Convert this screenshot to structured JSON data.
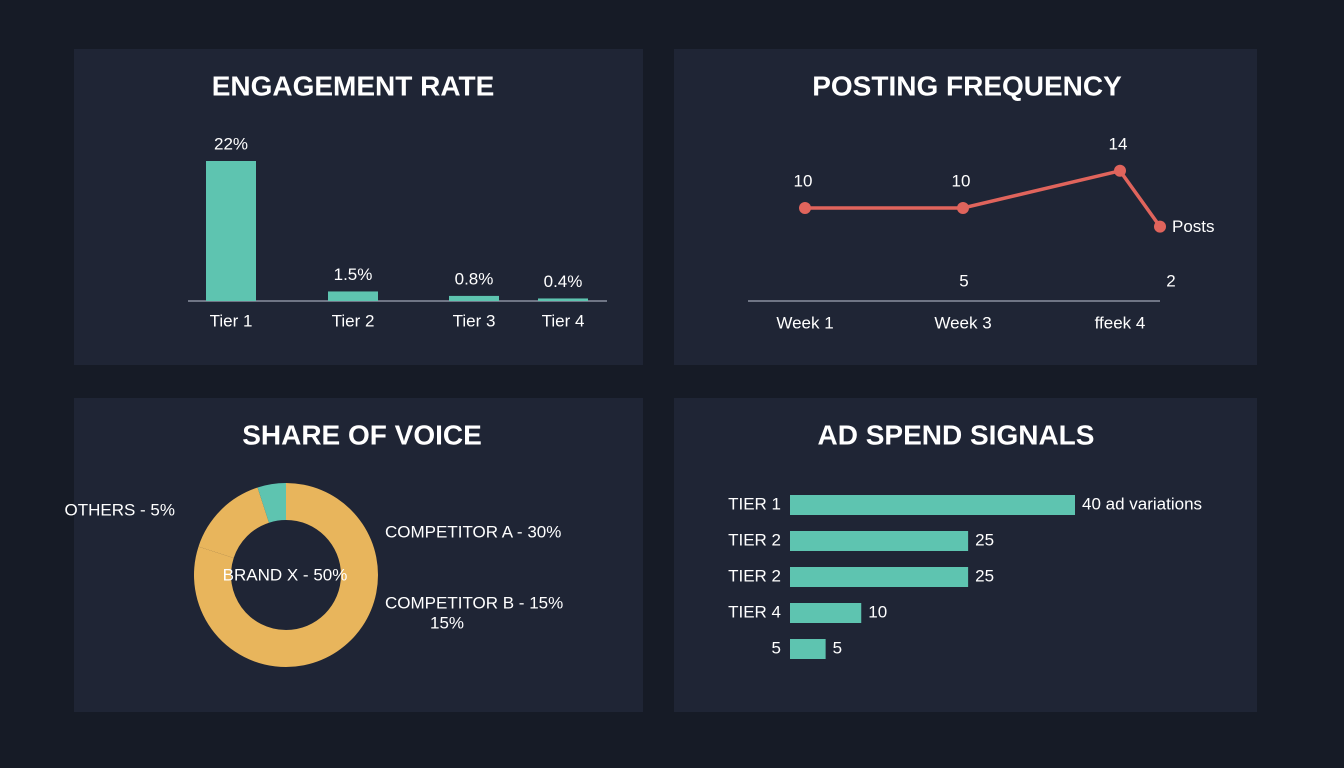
{
  "chart_data": [
    {
      "type": "bar",
      "title": "ENGAGEMENT RATE",
      "categories": [
        "Tier 1",
        "Tier 2",
        "Tier 3",
        "Tier 4"
      ],
      "values": [
        22,
        1.5,
        0.8,
        0.4
      ],
      "value_labels": [
        "22%",
        "1.5%",
        "0.8%",
        "0.4%"
      ],
      "color": "#5ec4b0"
    },
    {
      "type": "line",
      "title": "POSTING FREQUENCY",
      "categories": [
        "Week 1",
        "Week 3",
        "ffeek 4",
        null
      ],
      "series": [
        {
          "name": "Posts",
          "color": "#e0645c",
          "values": [
            10,
            10,
            14,
            8
          ]
        }
      ],
      "annotations": [
        "5",
        "2"
      ]
    },
    {
      "type": "pie",
      "title": "SHARE OF VOICE",
      "labels": [
        "BRAND X - 50%",
        "COMPETITOR A - 30%",
        "COMPETITOR B - 15%",
        "OTHERS - 5%"
      ],
      "values": [
        50,
        30,
        15,
        5
      ],
      "colors": [
        "#e8b55c",
        "#e8b55c",
        "#e8b55c",
        "#5ec4b0"
      ],
      "annotations": [
        "15%"
      ]
    },
    {
      "type": "bar",
      "horizontal": true,
      "title": "AD SPEND SIGNALS",
      "categories": [
        "TIER 1",
        "TIER 2",
        "TIER 2",
        "TIER 4",
        "5"
      ],
      "values": [
        40,
        25,
        25,
        10,
        5
      ],
      "value_labels": [
        "40 ad variations",
        "25",
        "25",
        "10",
        "5"
      ],
      "color": "#5ec4b0"
    }
  ]
}
